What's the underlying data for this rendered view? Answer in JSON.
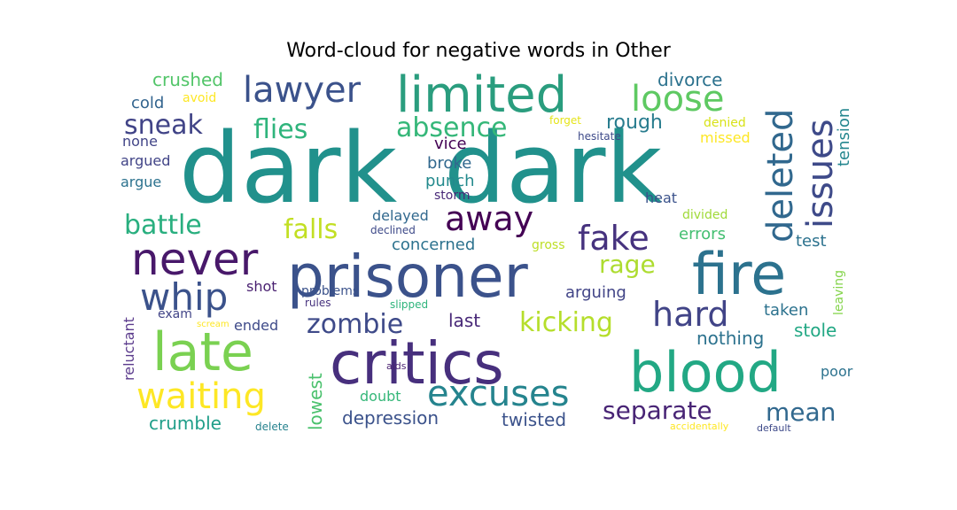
{
  "title": "Word-cloud for negative words in Other",
  "words": [
    {
      "text": "dark",
      "color": "#21918c"
    },
    {
      "text": "dark",
      "color": "#21918c"
    },
    {
      "text": "prisoner",
      "color": "#3b528b"
    },
    {
      "text": "critics",
      "color": "#472f7d"
    },
    {
      "text": "limited",
      "color": "#2a9d7e"
    },
    {
      "text": "fire",
      "color": "#2c728e"
    },
    {
      "text": "blood",
      "color": "#22a884"
    },
    {
      "text": "late",
      "color": "#7ad151"
    },
    {
      "text": "never",
      "color": "#48186a"
    },
    {
      "text": "lawyer",
      "color": "#3b528b"
    },
    {
      "text": "loose",
      "color": "#5ec962"
    },
    {
      "text": "deleted",
      "color": "#31688e"
    },
    {
      "text": "issues",
      "color": "#3e4a89"
    },
    {
      "text": "whip",
      "color": "#3b528b"
    },
    {
      "text": "excuses",
      "color": "#25848e"
    },
    {
      "text": "waiting",
      "color": "#fde725"
    },
    {
      "text": "away",
      "color": "#440154"
    },
    {
      "text": "fake",
      "color": "#46327e"
    },
    {
      "text": "hard",
      "color": "#414487"
    },
    {
      "text": "absence",
      "color": "#35b779"
    },
    {
      "text": "flies",
      "color": "#2fb47c"
    },
    {
      "text": "sneak",
      "color": "#414487"
    },
    {
      "text": "battle",
      "color": "#29af7f"
    },
    {
      "text": "falls",
      "color": "#c2df23"
    },
    {
      "text": "kicking",
      "color": "#b5de2b"
    },
    {
      "text": "zombie",
      "color": "#3e4a89"
    },
    {
      "text": "separate",
      "color": "#482475"
    },
    {
      "text": "mean",
      "color": "#31688e"
    },
    {
      "text": "rage",
      "color": "#addc30"
    },
    {
      "text": "crushed",
      "color": "#52c569"
    },
    {
      "text": "divorce",
      "color": "#2c728e"
    },
    {
      "text": "tension",
      "color": "#24868e"
    },
    {
      "text": "rough",
      "color": "#287c8e"
    },
    {
      "text": "cold",
      "color": "#32648e"
    },
    {
      "text": "avoid",
      "color": "#fde725"
    },
    {
      "text": "forget",
      "color": "#e5e419"
    },
    {
      "text": "denied",
      "color": "#d8e219"
    },
    {
      "text": "missed",
      "color": "#fde725"
    },
    {
      "text": "hesitate",
      "color": "#3e4a89"
    },
    {
      "text": "none",
      "color": "#414487"
    },
    {
      "text": "argued",
      "color": "#414487"
    },
    {
      "text": "argue",
      "color": "#2c728e"
    },
    {
      "text": "vice",
      "color": "#440154"
    },
    {
      "text": "broke",
      "color": "#31688e"
    },
    {
      "text": "punch",
      "color": "#238a8d"
    },
    {
      "text": "storm",
      "color": "#482878"
    },
    {
      "text": "heat",
      "color": "#3b528b"
    },
    {
      "text": "divided",
      "color": "#a0da39"
    },
    {
      "text": "errors",
      "color": "#43bf71"
    },
    {
      "text": "test",
      "color": "#2c728e"
    },
    {
      "text": "delayed",
      "color": "#31688e"
    },
    {
      "text": "declined",
      "color": "#3e4a89"
    },
    {
      "text": "concerned",
      "color": "#2c728e"
    },
    {
      "text": "problems",
      "color": "#3b528b"
    },
    {
      "text": "gross",
      "color": "#bddf26"
    },
    {
      "text": "shot",
      "color": "#481f70"
    },
    {
      "text": "rules",
      "color": "#46327e"
    },
    {
      "text": "slipped",
      "color": "#2fb47c"
    },
    {
      "text": "arguing",
      "color": "#414487"
    },
    {
      "text": "leaving",
      "color": "#84d44b"
    },
    {
      "text": "taken",
      "color": "#2c728e"
    },
    {
      "text": "reluctant",
      "color": "#5c3c8d"
    },
    {
      "text": "exam",
      "color": "#414487"
    },
    {
      "text": "scream",
      "color": "#fde725"
    },
    {
      "text": "ended",
      "color": "#3e4a89"
    },
    {
      "text": "last",
      "color": "#482878"
    },
    {
      "text": "nothing",
      "color": "#2c728e"
    },
    {
      "text": "stole",
      "color": "#22a884"
    },
    {
      "text": "lowest",
      "color": "#4ac16d"
    },
    {
      "text": "aids",
      "color": "#481f70"
    },
    {
      "text": "poor",
      "color": "#2c728e"
    },
    {
      "text": "doubt",
      "color": "#35b779"
    },
    {
      "text": "depression",
      "color": "#3b528b"
    },
    {
      "text": "twisted",
      "color": "#3b528b"
    },
    {
      "text": "crumble",
      "color": "#1f9e89"
    },
    {
      "text": "delete",
      "color": "#26828e"
    },
    {
      "text": "accidentally",
      "color": "#fde725"
    },
    {
      "text": "default",
      "color": "#3e4a89"
    }
  ]
}
